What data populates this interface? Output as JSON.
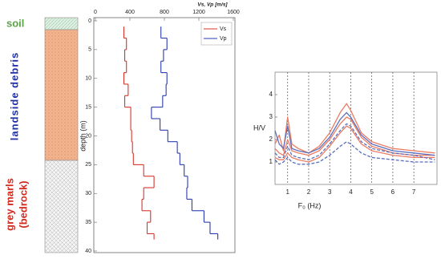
{
  "column": {
    "layers": [
      {
        "label": "soil"
      },
      {
        "label": "landside debris"
      },
      {
        "lines": [
          "grey marls",
          "(bedrock)"
        ]
      }
    ]
  },
  "chart_data": [
    {
      "type": "step",
      "x_label": "Vs, Vp  [m/s]",
      "y_label": "depth (m)",
      "xlim": [
        0,
        1600
      ],
      "xticks": [
        0,
        400,
        800,
        1200,
        1600
      ],
      "ylim": [
        0,
        40
      ],
      "yticks": [
        0,
        5,
        10,
        15,
        20,
        25,
        30,
        35,
        40
      ],
      "y_inverted": true,
      "depth_edges": [
        1,
        3,
        5,
        7,
        9,
        11,
        13,
        15,
        17,
        19,
        21,
        23,
        25,
        27,
        29,
        31,
        33,
        35,
        37,
        38
      ],
      "legend": "upper right",
      "series": [
        {
          "name": "Vs",
          "color": "#d9342b",
          "values": [
            330,
            360,
            340,
            360,
            330,
            380,
            340,
            410,
            410,
            420,
            430,
            440,
            560,
            680,
            560,
            540,
            640,
            600,
            680
          ]
        },
        {
          "name": "Vp",
          "color": "#2b3bb0",
          "values": [
            760,
            830,
            790,
            760,
            830,
            820,
            780,
            650,
            750,
            840,
            950,
            980,
            1030,
            1070,
            1060,
            1120,
            1260,
            1330,
            1420
          ]
        }
      ]
    },
    {
      "type": "line",
      "y_label": "H/V",
      "x_label": "F₀ (Hz)",
      "xlim": [
        0.4,
        8.1
      ],
      "xticks": [
        1,
        2,
        3,
        4,
        5,
        6,
        7
      ],
      "ylim": [
        0,
        5
      ],
      "yticks": [
        1,
        2,
        3,
        4
      ],
      "grid_x": true,
      "x": [
        0.4,
        0.6,
        0.8,
        1.0,
        1.2,
        1.5,
        2,
        2.5,
        3,
        3.5,
        3.8,
        4,
        4.5,
        5,
        6,
        7,
        8
      ],
      "series": [
        {
          "color": "#ec7b62",
          "dash": false,
          "values": [
            1.8,
            2.2,
            1.5,
            3.0,
            1.8,
            1.6,
            1.4,
            1.7,
            2.3,
            3.2,
            3.6,
            3.3,
            2.3,
            1.9,
            1.6,
            1.5,
            1.4
          ]
        },
        {
          "color": "#ec7b62",
          "dash": false,
          "values": [
            1.6,
            1.4,
            1.3,
            2.0,
            1.5,
            1.4,
            1.3,
            1.5,
            2.0,
            2.7,
            3.0,
            2.9,
            2.1,
            1.7,
            1.4,
            1.3,
            1.3
          ]
        },
        {
          "color": "#ec7b62",
          "dash": false,
          "values": [
            1.2,
            1.1,
            1.1,
            1.4,
            1.2,
            1.1,
            1.0,
            1.2,
            1.7,
            2.3,
            2.6,
            2.5,
            1.8,
            1.5,
            1.3,
            1.2,
            1.2
          ]
        },
        {
          "color": "#5a6fc0",
          "dash": false,
          "values": [
            2.4,
            1.8,
            1.6,
            2.6,
            1.6,
            1.5,
            1.4,
            1.6,
            2.1,
            2.9,
            3.2,
            3.0,
            2.2,
            1.8,
            1.5,
            1.4,
            1.3
          ]
        },
        {
          "color": "#5a6fc0",
          "dash": true,
          "values": [
            1.4,
            1.2,
            1.2,
            1.7,
            1.3,
            1.2,
            1.1,
            1.3,
            1.8,
            2.4,
            2.7,
            2.6,
            1.9,
            1.6,
            1.4,
            1.3,
            1.1
          ]
        },
        {
          "color": "#5a6fc0",
          "dash": true,
          "values": [
            1.1,
            0.9,
            1.0,
            1.2,
            1.0,
            0.9,
            0.9,
            1.0,
            1.3,
            1.7,
            1.9,
            1.8,
            1.4,
            1.2,
            1.1,
            1.0,
            1.0
          ]
        }
      ]
    }
  ]
}
